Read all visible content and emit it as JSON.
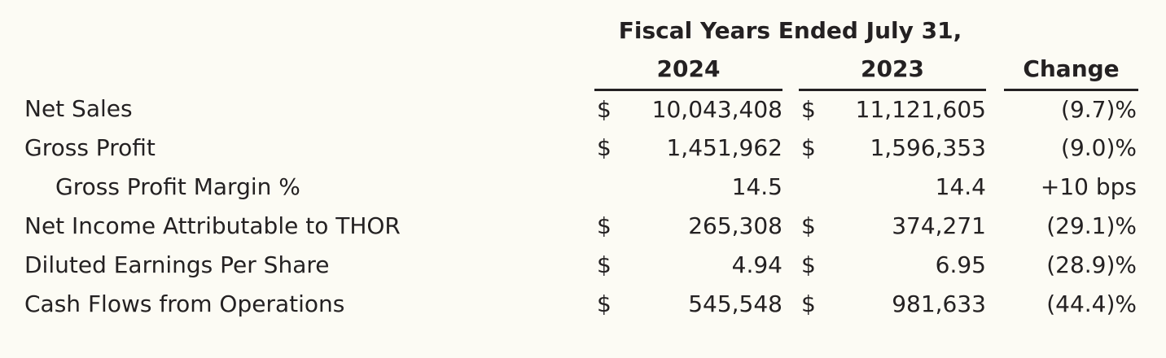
{
  "page": {
    "colors": {
      "background": "#FCFBF4",
      "text": "#242122",
      "rule": "#242122"
    }
  },
  "table": {
    "period_header": "Fiscal Years Ended July 31,",
    "columns": {
      "year_2024": "2024",
      "year_2023": "2023",
      "change": "Change"
    },
    "rows": [
      {
        "label": "Net Sales",
        "cur_2024": "$",
        "val_2024": "10,043,408",
        "cur_2023": "$",
        "val_2023": "11,121,605",
        "change": "(9.7)%"
      },
      {
        "label": "Gross Profit",
        "cur_2024": "$",
        "val_2024": "1,451,962",
        "cur_2023": "$",
        "val_2023": "1,596,353",
        "change": "(9.0)%"
      },
      {
        "label": "Gross Profit Margin %",
        "cur_2024": "",
        "val_2024": "14.5",
        "cur_2023": "",
        "val_2023": "14.4",
        "change": "+10 bps"
      },
      {
        "label": "Net Income Attributable to THOR",
        "cur_2024": "$",
        "val_2024": "265,308",
        "cur_2023": "$",
        "val_2023": "374,271",
        "change": "(29.1)%"
      },
      {
        "label": "Diluted Earnings Per Share",
        "cur_2024": "$",
        "val_2024": "4.94",
        "cur_2023": "$",
        "val_2023": "6.95",
        "change": "(28.9)%"
      },
      {
        "label": "Cash Flows from Operations",
        "cur_2024": "$",
        "val_2024": "545,548",
        "cur_2023": "$",
        "val_2023": "981,633",
        "change": "(44.4)%"
      }
    ]
  }
}
